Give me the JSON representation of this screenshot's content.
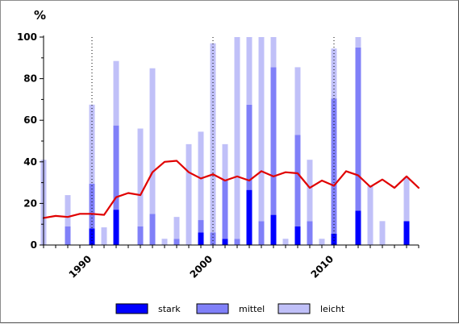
{
  "chart_data": {
    "type": "bar",
    "stacked": true,
    "title": "",
    "ylabel": "%",
    "xlabel": "",
    "ylim": [
      0,
      100
    ],
    "xlim": [
      1986,
      2017
    ],
    "y_ticks": [
      0,
      20,
      40,
      60,
      80,
      100
    ],
    "x_tick_labels": [
      "1990",
      "2000",
      "2010"
    ],
    "x_tick_values": [
      1990,
      2000,
      2010
    ],
    "reference_lines_x": [
      1990,
      2000,
      2010
    ],
    "grid": false,
    "legend_position": "bottom",
    "years": [
      1986,
      1987,
      1988,
      1989,
      1990,
      1991,
      1992,
      1993,
      1994,
      1995,
      1996,
      1997,
      1998,
      1999,
      2000,
      2001,
      2002,
      2003,
      2004,
      2005,
      2006,
      2007,
      2008,
      2009,
      2010,
      2011,
      2012,
      2013,
      2014,
      2015,
      2016
    ],
    "series": [
      {
        "name": "stark",
        "color": "#0000ff",
        "values": [
          0,
          0,
          0,
          0,
          8,
          0,
          17,
          0,
          0,
          0,
          0,
          0,
          0,
          6,
          0,
          3,
          0,
          26.5,
          0,
          14.5,
          0,
          9,
          0,
          0,
          5.5,
          0,
          16.5,
          0,
          0,
          0,
          11.5
        ]
      },
      {
        "name": "mittel",
        "color": "#8080f8",
        "values": [
          0,
          0,
          9,
          0,
          21.5,
          0,
          40.5,
          0,
          9,
          15,
          0,
          3,
          0,
          6,
          6,
          28.5,
          3,
          41,
          11.5,
          71,
          0,
          44,
          11.5,
          0,
          65,
          0,
          78.5,
          0,
          0,
          0,
          0
        ]
      },
      {
        "name": "leicht",
        "color": "#c0c0f8",
        "values": [
          41,
          0,
          15,
          0,
          38,
          8.5,
          31,
          0,
          47,
          70,
          3,
          10.5,
          48.5,
          42.5,
          91,
          17,
          97,
          32.5,
          88.5,
          14.5,
          3,
          32.5,
          29.5,
          3,
          24,
          0,
          5,
          28.5,
          11.5,
          0,
          21
        ]
      }
    ],
    "line_series": {
      "name": "",
      "color": "#e00000",
      "x": [
        1986,
        1987,
        1988,
        1989,
        1990,
        1991,
        1992,
        1993,
        1994,
        1995,
        1996,
        1997,
        1998,
        1999,
        2000,
        2001,
        2002,
        2003,
        2004,
        2005,
        2006,
        2007,
        2008,
        2009,
        2010,
        2011,
        2012,
        2013,
        2014,
        2015,
        2016,
        2017
      ],
      "values": [
        13,
        14,
        13.5,
        15,
        15,
        14.5,
        23,
        25,
        24,
        35,
        40,
        40.5,
        35,
        32,
        34,
        31,
        33,
        31,
        35.5,
        33,
        35,
        34.5,
        27.5,
        31,
        28.5,
        35.5,
        33.5,
        28,
        31.5,
        27.5,
        33,
        27.5
      ]
    }
  }
}
